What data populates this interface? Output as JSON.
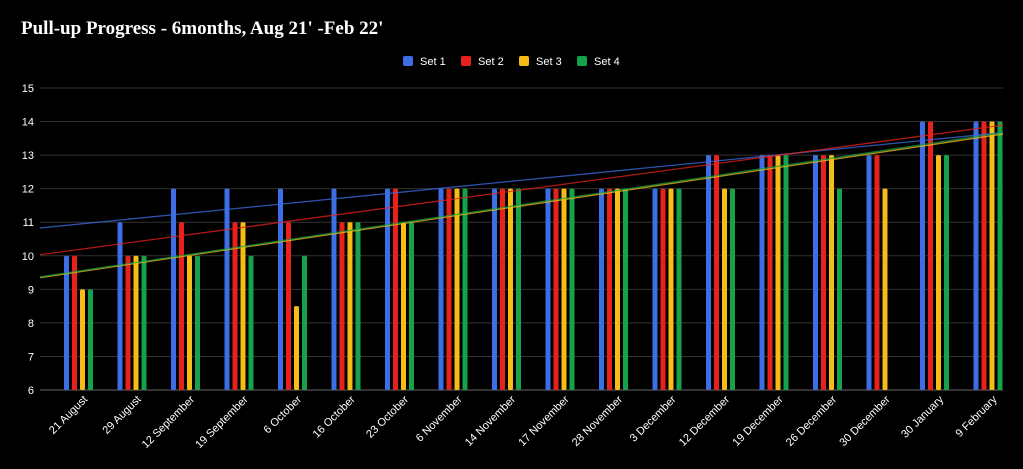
{
  "chart_data": {
    "type": "bar",
    "title": "Pull-up Progress - 6months, Aug 21' -Feb 22'",
    "xlabel": "",
    "ylabel": "",
    "ylim": [
      6,
      15
    ],
    "yticks": [
      6,
      7,
      8,
      9,
      10,
      11,
      12,
      13,
      14,
      15
    ],
    "grid": true,
    "legend_position": "top-center",
    "trendlines": true,
    "categories": [
      "21 August",
      "29 August",
      "12 September",
      "19 September",
      "6 October",
      "16 October",
      "23 October",
      "6 November",
      "14 November",
      "17 November",
      "28 November",
      "3 December",
      "12 December",
      "19 December",
      "26 December",
      "30 December",
      "30 January",
      "9 February"
    ],
    "series": [
      {
        "name": "Set 1",
        "color": "#3d6ee6",
        "values": [
          10,
          11,
          12,
          12,
          12,
          12,
          12,
          12,
          12,
          12,
          12,
          12,
          13,
          13,
          13,
          13,
          14,
          14
        ]
      },
      {
        "name": "Set 2",
        "color": "#e8211c",
        "values": [
          10,
          10,
          11,
          11,
          11,
          11,
          12,
          12,
          12,
          12,
          12,
          12,
          13,
          13,
          13,
          13,
          14,
          14
        ]
      },
      {
        "name": "Set 3",
        "color": "#f6bd16",
        "values": [
          9,
          10,
          10,
          11,
          8.5,
          11,
          11,
          12,
          12,
          12,
          12,
          12,
          12,
          13,
          13,
          12,
          13,
          14
        ]
      },
      {
        "name": "Set 4",
        "color": "#14a34a",
        "values": [
          9,
          10,
          10,
          10,
          10,
          11,
          11,
          12,
          12,
          12,
          12,
          12,
          12,
          13,
          12,
          null,
          13,
          14
        ]
      }
    ]
  }
}
